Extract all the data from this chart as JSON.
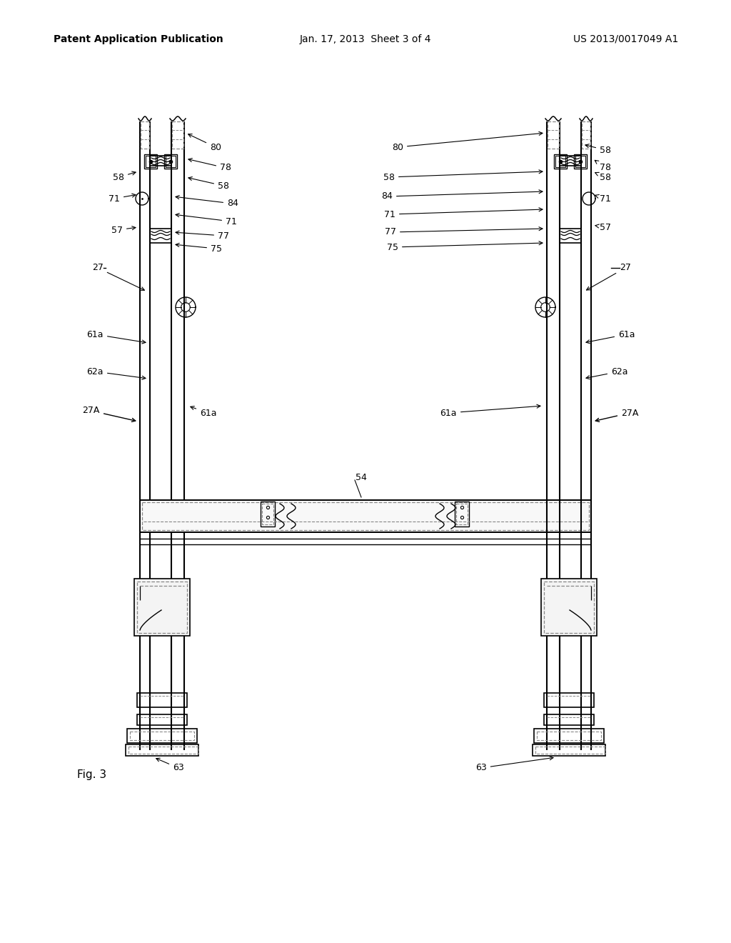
{
  "header_left": "Patent Application Publication",
  "header_mid": "Jan. 17, 2013  Sheet 3 of 4",
  "header_right": "US 2013/0017049 A1",
  "fig_label": "Fig. 3",
  "bg_color": "#ffffff",
  "line_color": "#000000",
  "dashed_color": "#888888"
}
